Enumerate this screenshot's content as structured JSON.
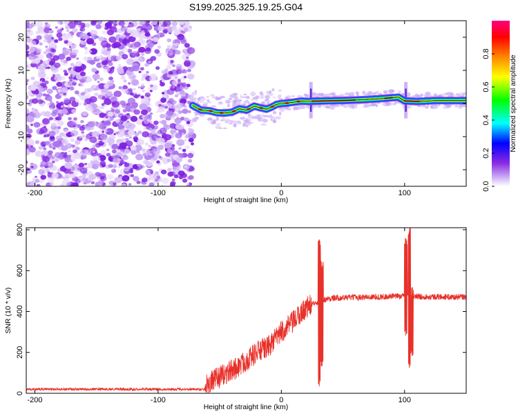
{
  "title": "S199.2025.325.19.25.G04",
  "chart_data": [
    {
      "type": "heatmap",
      "name": "spectrogram",
      "xlabel": "Height of straight line (km)",
      "ylabel": "Frequency (Hz)",
      "xlim": [
        -207,
        150
      ],
      "ylim": [
        -25,
        25
      ],
      "xticks": [
        -200,
        -100,
        0,
        100
      ],
      "yticks": [
        -20,
        -10,
        0,
        10,
        20
      ],
      "colorbar": {
        "label": "Normalized spectral amplitude",
        "range": [
          0,
          1
        ],
        "ticks": [
          "0.0",
          "0.2",
          "0.4",
          "0.6",
          "0.8"
        ],
        "tick_values": [
          0.0,
          0.2,
          0.4,
          0.6,
          0.8
        ],
        "colors": [
          "#ffffff",
          "#c7a6f5",
          "#8a2be2",
          "#0000ff",
          "#00ffff",
          "#00ff00",
          "#ffff00",
          "#ff8800",
          "#ff0000",
          "#ff0080"
        ]
      },
      "noise_region_x": [
        -207,
        -72
      ],
      "trace": {
        "x": [
          -72,
          -65,
          -58,
          -52,
          -46,
          -40,
          -34,
          -28,
          -22,
          -17,
          -12,
          -8,
          -4,
          0,
          4,
          10,
          16,
          22,
          26,
          35,
          50,
          70,
          85,
          95,
          100,
          110,
          125,
          150
        ],
        "y": [
          -0.6,
          -2.0,
          -2.2,
          -2.8,
          -2.9,
          -2.6,
          -1.6,
          -2.0,
          -0.8,
          -1.3,
          -1.7,
          -1.1,
          -0.3,
          0.0,
          0.1,
          0.4,
          0.7,
          0.6,
          0.7,
          0.8,
          0.9,
          1.2,
          1.6,
          1.9,
          0.8,
          0.6,
          0.9,
          0.9
        ],
        "bright_segments_x": [
          [
            25,
            60
          ],
          [
            84,
            90
          ],
          [
            100,
            112
          ]
        ],
        "spikes_x": [
          24,
          101
        ]
      }
    },
    {
      "type": "line",
      "name": "snr",
      "xlabel": "Height of straight line (km)",
      "ylabel": "SNR (10 * v/v)",
      "xlim": [
        -207,
        150
      ],
      "ylim": [
        0,
        810
      ],
      "xticks": [
        -200,
        -100,
        0,
        100
      ],
      "yticks": [
        0,
        200,
        400,
        600,
        800
      ],
      "color": "#e8312a",
      "baseline_x_range": [
        -207,
        -62
      ],
      "baseline_level": 20,
      "ramp_points": [
        {
          "x": -62,
          "y": 40
        },
        {
          "x": -50,
          "y": 80
        },
        {
          "x": -35,
          "y": 130
        },
        {
          "x": -20,
          "y": 200
        },
        {
          "x": -10,
          "y": 230
        },
        {
          "x": 0,
          "y": 300
        },
        {
          "x": 10,
          "y": 350
        },
        {
          "x": 20,
          "y": 420
        },
        {
          "x": 30,
          "y": 450
        },
        {
          "x": 40,
          "y": 465
        },
        {
          "x": 60,
          "y": 470
        },
        {
          "x": 80,
          "y": 472
        },
        {
          "x": 95,
          "y": 475
        },
        {
          "x": 150,
          "y": 470
        }
      ],
      "spikes": [
        {
          "x": 31,
          "max": 760,
          "min": 30
        },
        {
          "x": 33,
          "max": 650,
          "min": 120
        },
        {
          "x": 101,
          "max": 760,
          "min": 280
        },
        {
          "x": 104,
          "max": 810,
          "min": 110
        },
        {
          "x": 106,
          "max": 520,
          "min": 180
        }
      ]
    }
  ]
}
